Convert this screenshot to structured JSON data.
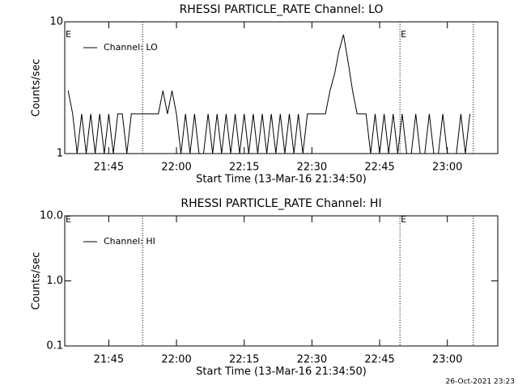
{
  "chart_data": [
    {
      "type": "line",
      "title": "RHESSI PARTICLE_RATE Channel: LO",
      "xlabel": "Start Time (13-Mar-16 21:34:50)",
      "ylabel": "Counts/sec",
      "x": [
        "21:36",
        "21:37",
        "21:38",
        "21:39",
        "21:40",
        "21:41",
        "21:42",
        "21:43",
        "21:44",
        "21:45",
        "21:46",
        "21:47",
        "21:48",
        "21:49",
        "21:50",
        "21:51",
        "21:52",
        "21:53",
        "21:54",
        "21:55",
        "21:56",
        "21:57",
        "21:58",
        "21:59",
        "22:00",
        "22:01",
        "22:02",
        "22:03",
        "22:04",
        "22:05",
        "22:06",
        "22:07",
        "22:08",
        "22:09",
        "22:10",
        "22:11",
        "22:12",
        "22:13",
        "22:14",
        "22:15",
        "22:16",
        "22:17",
        "22:18",
        "22:19",
        "22:20",
        "22:21",
        "22:22",
        "22:23",
        "22:24",
        "22:25",
        "22:26",
        "22:27",
        "22:28",
        "22:29",
        "22:30",
        "22:31",
        "22:32",
        "22:33",
        "22:34",
        "22:35",
        "22:36",
        "22:37",
        "22:38",
        "22:39",
        "22:40",
        "22:41",
        "22:42",
        "22:43",
        "22:44",
        "22:45",
        "22:46",
        "22:47",
        "22:48",
        "22:49",
        "22:50",
        "22:51",
        "22:52",
        "22:53",
        "22:54",
        "22:55",
        "22:56",
        "22:57",
        "22:58",
        "22:59",
        "23:00",
        "23:01",
        "23:02",
        "23:03",
        "23:04",
        "23:05"
      ],
      "series": [
        {
          "name": "Channel: LO",
          "color": "#000000",
          "values": [
            3,
            2,
            1,
            2,
            1,
            2,
            1,
            2,
            1,
            2,
            1,
            2,
            2,
            1,
            2,
            2,
            2,
            2,
            2,
            2,
            2,
            3,
            2,
            3,
            2,
            1,
            2,
            1,
            2,
            1,
            1,
            2,
            1,
            2,
            1,
            2,
            1,
            2,
            1,
            2,
            1,
            2,
            1,
            2,
            1,
            2,
            1,
            2,
            1,
            2,
            1,
            2,
            1,
            2,
            2,
            2,
            2,
            2,
            3,
            4,
            6,
            8,
            5,
            3,
            2,
            2,
            2,
            1,
            2,
            1,
            2,
            1,
            2,
            1,
            2,
            1,
            1,
            2,
            1,
            1,
            2,
            1,
            1,
            2,
            1,
            1,
            1,
            2,
            1,
            2
          ]
        }
      ],
      "xlim": [
        "21:35:15",
        "23:11:10"
      ],
      "xticks": [
        "21:45",
        "22:00",
        "22:15",
        "22:30",
        "22:45",
        "23:00"
      ],
      "ylim": [
        1,
        10
      ],
      "yticks": [
        10,
        1
      ],
      "log_y": true,
      "vlines": [
        "21:52:30",
        "22:49:30",
        "23:05:45"
      ],
      "annotations": [
        {
          "text": "E",
          "x": "21:35:15"
        },
        {
          "text": "E",
          "x": "22:49:30"
        }
      ]
    },
    {
      "type": "line",
      "title": "RHESSI PARTICLE_RATE Channel: HI",
      "xlabel": "Start Time (13-Mar-16 21:34:50)",
      "ylabel": "Counts/sec",
      "x": [],
      "series": [
        {
          "name": "Channel: HI",
          "color": "#000000",
          "values": []
        }
      ],
      "xlim": [
        "21:35:15",
        "23:11:10"
      ],
      "xticks": [
        "21:45",
        "22:00",
        "22:15",
        "22:30",
        "22:45",
        "23:00"
      ],
      "ylim": [
        0.1,
        10
      ],
      "yticks": [
        {
          "value": 10,
          "label": "10.0"
        },
        {
          "value": 1,
          "label": "1.0"
        },
        {
          "value": 0.1,
          "label": "0.1"
        }
      ],
      "log_y": true,
      "vlines": [
        "21:52:30",
        "22:49:30",
        "23:05:45"
      ],
      "annotations": [
        {
          "text": "E",
          "x": "21:35:15"
        },
        {
          "text": "E",
          "x": "22:49:30"
        }
      ]
    }
  ],
  "footer": "26-Oct-2021 23:23"
}
